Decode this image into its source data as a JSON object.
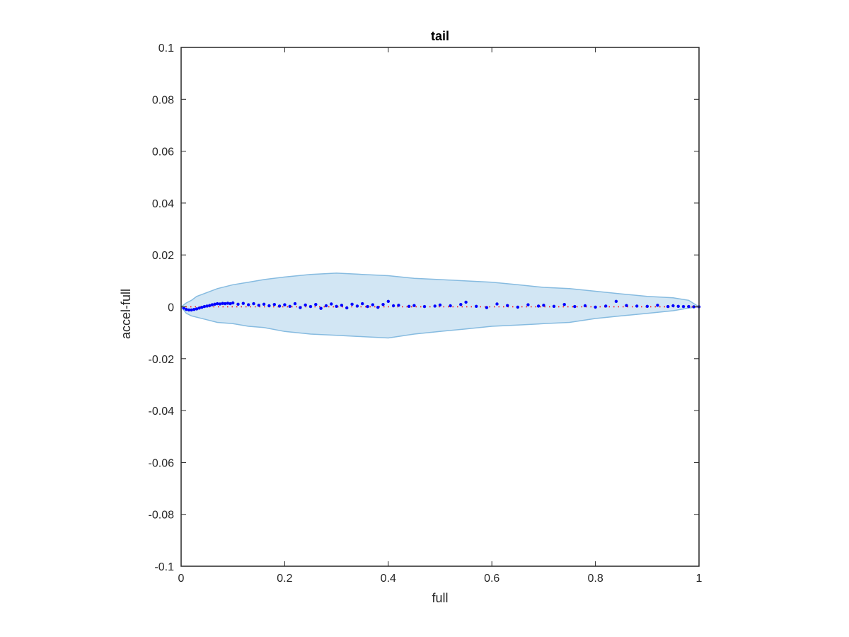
{
  "chart_data": {
    "type": "scatter",
    "title": "tail",
    "xlabel": "full",
    "ylabel": "accel-full",
    "xlim": [
      0,
      1
    ],
    "ylim": [
      -0.1,
      0.1
    ],
    "grid": false,
    "xticks": [
      {
        "value": 0,
        "label": "0"
      },
      {
        "value": 0.2,
        "label": "0.2"
      },
      {
        "value": 0.4,
        "label": "0.4"
      },
      {
        "value": 0.6,
        "label": "0.6"
      },
      {
        "value": 0.8,
        "label": "0.8"
      },
      {
        "value": 1,
        "label": "1"
      }
    ],
    "yticks": [
      {
        "value": 0.1,
        "label": "0.1"
      },
      {
        "value": 0.08,
        "label": "0.08"
      },
      {
        "value": 0.06,
        "label": "0.06"
      },
      {
        "value": 0.04,
        "label": "0.04"
      },
      {
        "value": 0.02,
        "label": "0.02"
      },
      {
        "value": 0,
        "label": "0"
      },
      {
        "value": -0.02,
        "label": "-0.02"
      },
      {
        "value": -0.04,
        "label": "-0.04"
      },
      {
        "value": -0.06,
        "label": "-0.06"
      },
      {
        "value": -0.08,
        "label": "-0.08"
      },
      {
        "value": -0.1,
        "label": "-0.1"
      }
    ],
    "colors": {
      "band_fill": "#d2e6f4",
      "band_edge": "#86bbe0",
      "points": "#0000ff",
      "reference": "#ff0000",
      "axes": "#262626"
    },
    "band": {
      "x": [
        0,
        0.01,
        0.02,
        0.03,
        0.05,
        0.07,
        0.1,
        0.13,
        0.16,
        0.2,
        0.25,
        0.3,
        0.35,
        0.4,
        0.45,
        0.5,
        0.55,
        0.6,
        0.65,
        0.7,
        0.75,
        0.8,
        0.85,
        0.9,
        0.95,
        0.98,
        1.0
      ],
      "upper": [
        0,
        0.0015,
        0.0025,
        0.004,
        0.0055,
        0.007,
        0.0085,
        0.0095,
        0.0105,
        0.0115,
        0.0125,
        0.013,
        0.0125,
        0.012,
        0.011,
        0.0105,
        0.01,
        0.0095,
        0.0085,
        0.0075,
        0.007,
        0.006,
        0.005,
        0.004,
        0.0035,
        0.0025,
        0
      ],
      "lower": [
        0,
        -0.0025,
        -0.0035,
        -0.004,
        -0.005,
        -0.006,
        -0.0065,
        -0.0075,
        -0.008,
        -0.0095,
        -0.0105,
        -0.011,
        -0.0115,
        -0.012,
        -0.0105,
        -0.0095,
        -0.0085,
        -0.0075,
        -0.007,
        -0.0065,
        -0.006,
        -0.0045,
        -0.0035,
        -0.0025,
        -0.0015,
        -0.0005,
        0
      ]
    },
    "series": [
      {
        "x": [
          0.005,
          0.01,
          0.015,
          0.02,
          0.025,
          0.03,
          0.035,
          0.04,
          0.045,
          0.05,
          0.055,
          0.06,
          0.065,
          0.07,
          0.075,
          0.08,
          0.085,
          0.09,
          0.095,
          0.1,
          0.11,
          0.12,
          0.13,
          0.14,
          0.15,
          0.16,
          0.17,
          0.18,
          0.19,
          0.2,
          0.21,
          0.22,
          0.23,
          0.24,
          0.25,
          0.26,
          0.27,
          0.28,
          0.29,
          0.3,
          0.31,
          0.32,
          0.33,
          0.34,
          0.35,
          0.36,
          0.37,
          0.38,
          0.39,
          0.4,
          0.41,
          0.42,
          0.44,
          0.45,
          0.47,
          0.49,
          0.5,
          0.52,
          0.54,
          0.55,
          0.57,
          0.59,
          0.61,
          0.63,
          0.65,
          0.67,
          0.69,
          0.7,
          0.72,
          0.74,
          0.76,
          0.78,
          0.8,
          0.82,
          0.84,
          0.86,
          0.88,
          0.9,
          0.92,
          0.94,
          0.95,
          0.96,
          0.97,
          0.98,
          0.99,
          1.0
        ],
        "y": [
          -0.0005,
          -0.001,
          -0.0012,
          -0.0012,
          -0.001,
          -0.0008,
          -0.0005,
          -0.0002,
          0.0001,
          0.0003,
          0.0005,
          0.0008,
          0.001,
          0.0012,
          0.0011,
          0.0013,
          0.0012,
          0.0014,
          0.0012,
          0.0015,
          0.001,
          0.0013,
          0.0008,
          0.0012,
          0.0006,
          0.001,
          0.0004,
          0.0009,
          0.0003,
          0.0008,
          0.0002,
          0.0012,
          -0.0003,
          0.0007,
          0.0001,
          0.0009,
          -0.0006,
          0.0004,
          0.0011,
          0.0002,
          0.0006,
          -0.0004,
          0.001,
          0.0003,
          0.0012,
          0.0001,
          0.0008,
          -0.0002,
          0.0009,
          0.0021,
          0.0004,
          0.0006,
          0.0002,
          0.0005,
          0.0001,
          0.0003,
          0.0007,
          0.0004,
          0.0009,
          0.0018,
          0.0002,
          -0.0003,
          0.0011,
          0.0005,
          -0.0001,
          0.0008,
          0.0003,
          0.0006,
          0.0002,
          0.0009,
          0.0001,
          0.0004,
          -0.0001,
          0.0003,
          0.0021,
          0.0005,
          0.0003,
          0.0002,
          0.0006,
          0.0001,
          0.0004,
          0.0002,
          0.0001,
          0.0001,
          0.0,
          0.0
        ]
      }
    ]
  }
}
